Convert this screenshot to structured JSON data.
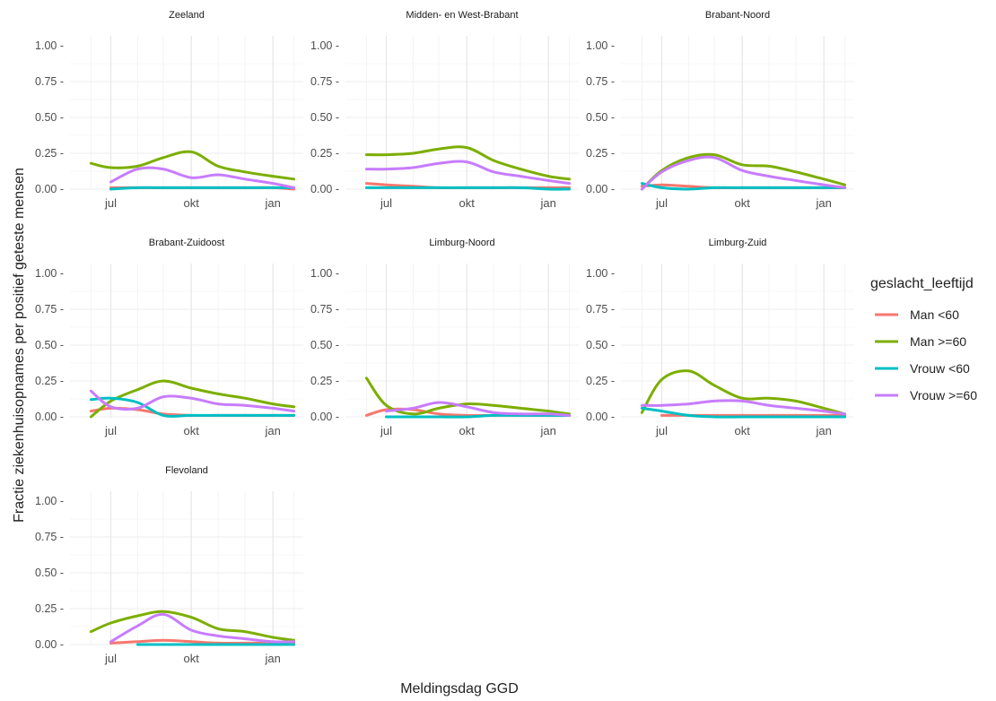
{
  "figure": {
    "xlabel": "Meldingsdag GGD",
    "ylabel": "Fractie ziekenhuisopnames per positief geteste mensen"
  },
  "legend": {
    "title": "geslacht_leeftijd",
    "entries": [
      {
        "label": "Man <60",
        "color": "#F8766D"
      },
      {
        "label": "Man >=60",
        "color": "#7CAE00"
      },
      {
        "label": "Vrouw <60",
        "color": "#00BFC4"
      },
      {
        "label": "Vrouw >=60",
        "color": "#C77CFF"
      }
    ]
  },
  "chart_data": [
    {
      "type": "line",
      "title": "Zeeland",
      "x": [
        "jun 20",
        "jul",
        "aug",
        "sep",
        "okt",
        "nov",
        "dec",
        "jan",
        "jan 10"
      ],
      "xticks": [
        "jul",
        "okt",
        "jan"
      ],
      "ylim": [
        0,
        1
      ],
      "yticks": [
        "0.00",
        "0.25",
        "0.50",
        "0.75",
        "1.00"
      ],
      "series": [
        {
          "name": "Man <60",
          "values": [
            null,
            0.01,
            0.01,
            0.01,
            0.01,
            0.01,
            0.01,
            0.01,
            0.0
          ]
        },
        {
          "name": "Man >=60",
          "values": [
            0.18,
            0.15,
            0.16,
            0.22,
            0.26,
            0.16,
            0.12,
            0.09,
            0.07
          ]
        },
        {
          "name": "Vrouw <60",
          "values": [
            null,
            0.0,
            0.01,
            0.01,
            0.01,
            0.01,
            0.01,
            0.01,
            0.01
          ]
        },
        {
          "name": "Vrouw >=60",
          "values": [
            null,
            0.05,
            0.14,
            0.14,
            0.08,
            0.1,
            0.07,
            0.04,
            0.01
          ]
        }
      ]
    },
    {
      "type": "line",
      "title": "Midden- en West-Brabant",
      "x": [
        "jun 20",
        "jul",
        "aug",
        "sep",
        "okt",
        "nov",
        "dec",
        "jan",
        "jan 10"
      ],
      "xticks": [
        "jul",
        "okt",
        "jan"
      ],
      "ylim": [
        0,
        1
      ],
      "yticks": [
        "0.00",
        "0.25",
        "0.50",
        "0.75",
        "1.00"
      ],
      "series": [
        {
          "name": "Man <60",
          "values": [
            0.04,
            0.03,
            0.02,
            0.01,
            0.01,
            0.01,
            0.01,
            0.01,
            0.01
          ]
        },
        {
          "name": "Man >=60",
          "values": [
            0.24,
            0.24,
            0.25,
            0.28,
            0.29,
            0.2,
            0.14,
            0.09,
            0.07
          ]
        },
        {
          "name": "Vrouw <60",
          "values": [
            0.01,
            0.01,
            0.01,
            0.01,
            0.01,
            0.01,
            0.01,
            0.0,
            0.0
          ]
        },
        {
          "name": "Vrouw >=60",
          "values": [
            0.14,
            0.14,
            0.15,
            0.18,
            0.19,
            0.12,
            0.09,
            0.06,
            0.04
          ]
        }
      ]
    },
    {
      "type": "line",
      "title": "Brabant-Noord",
      "x": [
        "jun 20",
        "jul",
        "aug",
        "sep",
        "okt",
        "nov",
        "dec",
        "jan",
        "jan 10"
      ],
      "xticks": [
        "jul",
        "okt",
        "jan"
      ],
      "ylim": [
        0,
        1
      ],
      "yticks": [
        "0.00",
        "0.25",
        "0.50",
        "0.75",
        "1.00"
      ],
      "series": [
        {
          "name": "Man <60",
          "values": [
            0.02,
            0.03,
            0.02,
            0.01,
            0.01,
            0.01,
            0.01,
            0.01,
            0.01
          ]
        },
        {
          "name": "Man >=60",
          "values": [
            0.0,
            0.13,
            0.22,
            0.24,
            0.17,
            0.16,
            0.12,
            0.07,
            0.03
          ]
        },
        {
          "name": "Vrouw <60",
          "values": [
            0.04,
            0.01,
            0.0,
            0.01,
            0.01,
            0.01,
            0.01,
            0.01,
            0.01
          ]
        },
        {
          "name": "Vrouw >=60",
          "values": [
            0.0,
            0.12,
            0.2,
            0.22,
            0.13,
            0.09,
            0.06,
            0.03,
            0.01
          ]
        }
      ]
    },
    {
      "type": "line",
      "title": "Brabant-Zuidoost",
      "x": [
        "jun 20",
        "jul",
        "aug",
        "sep",
        "okt",
        "nov",
        "dec",
        "jan",
        "jan 10"
      ],
      "xticks": [
        "jul",
        "okt",
        "jan"
      ],
      "ylim": [
        0,
        1
      ],
      "yticks": [
        "0.00",
        "0.25",
        "0.50",
        "0.75",
        "1.00"
      ],
      "series": [
        {
          "name": "Man <60",
          "values": [
            0.04,
            0.06,
            0.05,
            0.02,
            0.01,
            0.01,
            0.01,
            0.01,
            0.01
          ]
        },
        {
          "name": "Man >=60",
          "values": [
            0.0,
            0.11,
            0.19,
            0.25,
            0.2,
            0.16,
            0.13,
            0.09,
            0.07
          ]
        },
        {
          "name": "Vrouw <60",
          "values": [
            0.12,
            0.13,
            0.1,
            0.01,
            0.01,
            0.01,
            0.01,
            0.01,
            0.01
          ]
        },
        {
          "name": "Vrouw >=60",
          "values": [
            0.18,
            0.07,
            0.06,
            0.14,
            0.13,
            0.09,
            0.08,
            0.06,
            0.04
          ]
        }
      ]
    },
    {
      "type": "line",
      "title": "Limburg-Noord",
      "x": [
        "jun 20",
        "jul",
        "aug",
        "sep",
        "okt",
        "nov",
        "dec",
        "jan",
        "jan 10"
      ],
      "xticks": [
        "jul",
        "okt",
        "jan"
      ],
      "ylim": [
        0,
        1
      ],
      "yticks": [
        "0.00",
        "0.25",
        "0.50",
        "0.75",
        "1.00"
      ],
      "series": [
        {
          "name": "Man <60",
          "values": [
            0.01,
            0.05,
            0.05,
            0.02,
            0.01,
            0.01,
            0.01,
            0.01,
            0.01
          ]
        },
        {
          "name": "Man >=60",
          "values": [
            0.27,
            0.08,
            0.02,
            0.06,
            0.09,
            0.08,
            0.06,
            0.04,
            0.02
          ]
        },
        {
          "name": "Vrouw <60",
          "values": [
            null,
            0.0,
            0.0,
            0.0,
            0.0,
            0.01,
            0.01,
            0.01,
            0.01
          ]
        },
        {
          "name": "Vrouw >=60",
          "values": [
            null,
            0.04,
            0.06,
            0.1,
            0.07,
            0.03,
            0.02,
            0.02,
            0.01
          ]
        }
      ]
    },
    {
      "type": "line",
      "title": "Limburg-Zuid",
      "x": [
        "jun 20",
        "jul",
        "aug",
        "sep",
        "okt",
        "nov",
        "dec",
        "jan",
        "jan 10"
      ],
      "xticks": [
        "jul",
        "okt",
        "jan"
      ],
      "ylim": [
        0,
        1
      ],
      "yticks": [
        "0.00",
        "0.25",
        "0.50",
        "0.75",
        "1.00"
      ],
      "series": [
        {
          "name": "Man <60",
          "values": [
            null,
            0.01,
            0.01,
            0.01,
            0.01,
            0.01,
            0.01,
            0.01,
            0.01
          ]
        },
        {
          "name": "Man >=60",
          "values": [
            0.03,
            0.26,
            0.32,
            0.22,
            0.13,
            0.13,
            0.11,
            0.06,
            0.02
          ]
        },
        {
          "name": "Vrouw <60",
          "values": [
            0.06,
            0.04,
            0.01,
            0.0,
            0.0,
            0.0,
            0.0,
            0.0,
            0.0
          ]
        },
        {
          "name": "Vrouw >=60",
          "values": [
            0.08,
            0.08,
            0.09,
            0.11,
            0.11,
            0.08,
            0.06,
            0.04,
            0.02
          ]
        }
      ]
    },
    {
      "type": "line",
      "title": "Flevoland",
      "x": [
        "jun 20",
        "jul",
        "aug",
        "sep",
        "okt",
        "nov",
        "dec",
        "jan",
        "jan 10"
      ],
      "xticks": [
        "jul",
        "okt",
        "jan"
      ],
      "ylim": [
        0,
        1
      ],
      "yticks": [
        "0.00",
        "0.25",
        "0.50",
        "0.75",
        "1.00"
      ],
      "series": [
        {
          "name": "Man <60",
          "values": [
            null,
            0.01,
            0.02,
            0.03,
            0.02,
            0.01,
            0.01,
            0.01,
            0.01
          ]
        },
        {
          "name": "Man >=60",
          "values": [
            0.09,
            0.15,
            0.2,
            0.23,
            0.19,
            0.11,
            0.09,
            0.05,
            0.03
          ]
        },
        {
          "name": "Vrouw <60",
          "values": [
            null,
            null,
            0.0,
            0.0,
            0.0,
            0.0,
            0.0,
            0.0,
            0.0
          ]
        },
        {
          "name": "Vrouw >=60",
          "values": [
            null,
            0.02,
            0.13,
            0.21,
            0.1,
            0.06,
            0.04,
            0.02,
            0.02
          ]
        }
      ]
    }
  ]
}
